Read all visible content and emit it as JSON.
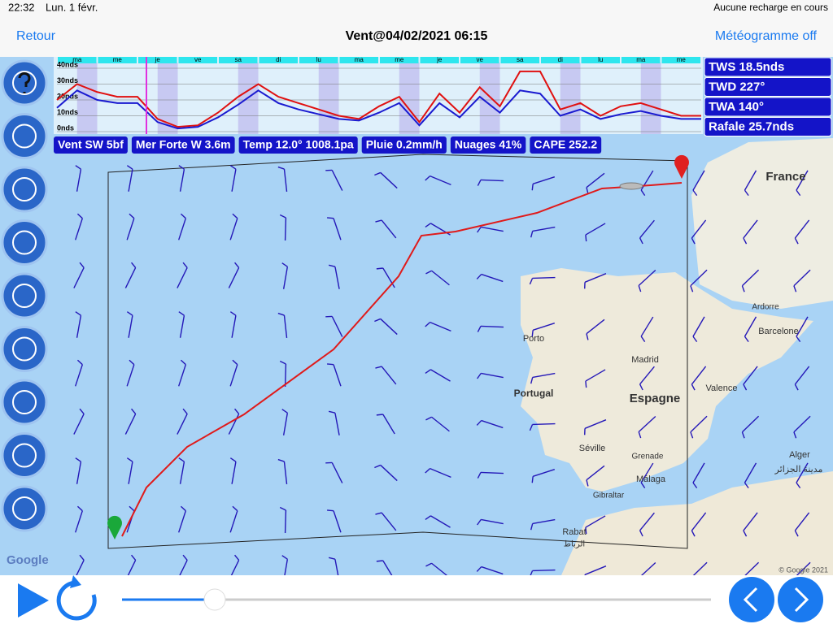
{
  "status_bar": {
    "time": "22:32",
    "date": "Lun. 1 févr.",
    "battery": "Aucune recharge en cours"
  },
  "nav_bar": {
    "back": "Retour",
    "title": "Vent@04/02/2021 06:15",
    "action": "Météogramme off"
  },
  "meteogram": {
    "type": "line",
    "days": [
      "ma",
      "me",
      "je",
      "ve",
      "sa",
      "di",
      "lu",
      "ma",
      "me",
      "je",
      "ve",
      "sa",
      "di",
      "lu",
      "ma",
      "me"
    ],
    "ylim": [
      0,
      40
    ],
    "yticks": [
      {
        "value": 0,
        "label": "0nds"
      },
      {
        "value": 10,
        "label": "10nds"
      },
      {
        "value": 20,
        "label": "20nds"
      },
      {
        "value": 30,
        "label": "30nds"
      },
      {
        "value": 40,
        "label": "40nds"
      }
    ],
    "series": [
      {
        "color": "#e01010",
        "values": [
          20,
          30,
          25,
          22,
          22,
          8,
          3,
          4,
          12,
          22,
          30,
          22,
          18,
          14,
          10,
          8,
          16,
          22,
          6,
          24,
          12,
          28,
          16,
          38,
          38,
          14,
          18,
          10,
          16,
          18,
          14,
          10,
          10
        ]
      },
      {
        "color": "#1a1ad0",
        "values": [
          15,
          26,
          20,
          18,
          18,
          6,
          2,
          3,
          9,
          17,
          26,
          18,
          14,
          11,
          8,
          7,
          12,
          18,
          4,
          18,
          9,
          22,
          12,
          26,
          24,
          10,
          14,
          8,
          11,
          13,
          10,
          8,
          8
        ]
      }
    ]
  },
  "info_chips": [
    "Vent SW 5bf",
    "Mer Forte W 3.6m",
    "Temp 12.0° 1008.1pa",
    "Pluie 0.2mm/h",
    "Nuages 41%",
    "CAPE 252.2"
  ],
  "info_panel": [
    "TWS 18.5nds",
    "TWD 227°",
    "TWA 140°",
    "Rafale 25.7nds"
  ],
  "map_labels": [
    "France",
    "Ardorre",
    "Barcelone",
    "Porto",
    "Madrid",
    "Portugal",
    "Espagne",
    "Valence",
    "Séville",
    "Grenade",
    "Málaga",
    "Gibraltar",
    "Alger",
    "مدينة الجزائر",
    "Rabat",
    "الرباط"
  ],
  "map_footer": {
    "logo": "Google",
    "copyright": "© Google 2021"
  }
}
